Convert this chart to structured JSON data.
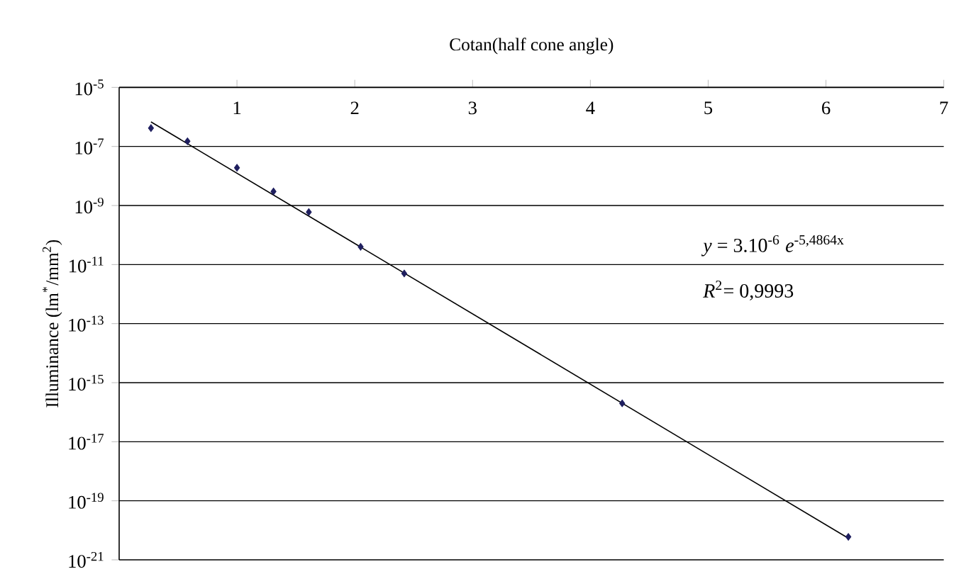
{
  "chart_data": {
    "type": "scatter",
    "xlabel": "Cotan(half cone angle)",
    "ylabel": "Illuminance (lm$^{*}$/mm$^{2}$)",
    "log": true,
    "grid": "y",
    "xlim": [
      0,
      7
    ],
    "xticks": [
      1,
      2,
      3,
      4,
      5,
      6,
      7
    ],
    "ylim": [
      1e-21,
      1e-05
    ],
    "yticks": [
      {
        "value": 1e-05,
        "label": "10$^{-5}$"
      },
      {
        "value": 1e-07,
        "label": "10$^{-7}$"
      },
      {
        "value": 1e-09,
        "label": "10$^{-9}$"
      },
      {
        "value": 1e-11,
        "label": "10$^{-11}$"
      },
      {
        "value": 1e-13,
        "label": "10$^{-13}$"
      },
      {
        "value": 1e-15,
        "label": "10$^{-15}$"
      },
      {
        "value": 1e-17,
        "label": "10$^{-17}$"
      },
      {
        "value": 1e-19,
        "label": "10$^{-19}$"
      },
      {
        "value": 1e-21,
        "label": "10$^{-21}$"
      }
    ],
    "series": [
      {
        "color": "#1f1f5f",
        "marker": "diamond",
        "x": [
          0.27,
          0.58,
          1.0,
          1.31,
          1.61,
          2.05,
          2.42,
          4.27,
          6.19
        ],
        "values": [
          4.2e-07,
          1.5e-07,
          1.9e-08,
          3e-09,
          6e-10,
          4e-11,
          5e-12,
          2e-16,
          6e-21
        ]
      },
      {
        "type": "line",
        "color": "#000000",
        "marker": "none",
        "x": [
          0.27,
          6.19
        ],
        "values": [
          6.8e-07,
          5.4e-21
        ]
      }
    ],
    "annotations": [
      "*y* = 3.10$^{-6}$ *e*$^{-5,4864x}$",
      "*R*$^{2}$= 0,9993"
    ]
  }
}
